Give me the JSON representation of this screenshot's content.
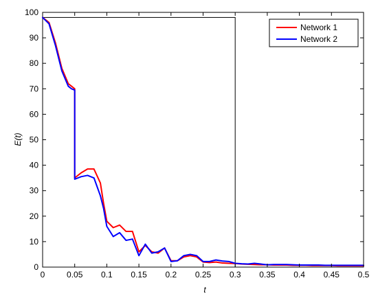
{
  "chart_data": {
    "type": "line",
    "title": "",
    "xlabel": "t",
    "ylabel": "E(t)",
    "xlim": [
      0,
      0.5
    ],
    "ylim": [
      0,
      100
    ],
    "xticks": [
      "0",
      "0.05",
      "0.1",
      "0.15",
      "0.2",
      "0.25",
      "0.3",
      "0.35",
      "0.4",
      "0.45",
      "0.5"
    ],
    "yticks": [
      "0",
      "10",
      "20",
      "30",
      "40",
      "50",
      "60",
      "70",
      "80",
      "90",
      "100"
    ],
    "grid": false,
    "legend_position": "top-right",
    "annotations": {
      "box_corner": [
        0.3,
        98
      ]
    },
    "series": [
      {
        "name": "Network 1",
        "color": "#ff0000",
        "x": [
          0,
          0.01,
          0.02,
          0.03,
          0.04,
          0.045,
          0.05,
          0.05,
          0.06,
          0.07,
          0.08,
          0.09,
          0.095,
          0.1,
          0.11,
          0.12,
          0.13,
          0.14,
          0.15,
          0.16,
          0.17,
          0.18,
          0.19,
          0.2,
          0.21,
          0.22,
          0.23,
          0.24,
          0.25,
          0.26,
          0.27,
          0.28,
          0.29,
          0.3,
          0.31,
          0.32,
          0.33,
          0.34,
          0.35,
          0.36,
          0.37,
          0.38,
          0.39,
          0.4,
          0.41,
          0.42,
          0.43,
          0.44,
          0.45,
          0.46,
          0.47,
          0.48,
          0.49,
          0.5
        ],
        "y": [
          98,
          96,
          88,
          78,
          72,
          71,
          70,
          35,
          37,
          38.5,
          38.5,
          33,
          25,
          18,
          15.5,
          16.5,
          14,
          14,
          6,
          8.5,
          6,
          5.5,
          7.5,
          2.5,
          2.5,
          4,
          4.5,
          4,
          2,
          1.8,
          2,
          1.6,
          1.5,
          1.4,
          1.2,
          1.1,
          1.0,
          0.9,
          0.9,
          0.8,
          0.8,
          0.8,
          0.7,
          0.7,
          0.7,
          0.6,
          0.6,
          0.6,
          0.6,
          0.5,
          0.5,
          0.5,
          0.5,
          0.5
        ]
      },
      {
        "name": "Network 2",
        "color": "#0000ff",
        "x": [
          0,
          0.01,
          0.02,
          0.03,
          0.04,
          0.045,
          0.05,
          0.05,
          0.06,
          0.07,
          0.08,
          0.09,
          0.095,
          0.1,
          0.11,
          0.12,
          0.13,
          0.14,
          0.15,
          0.16,
          0.17,
          0.18,
          0.19,
          0.2,
          0.21,
          0.22,
          0.23,
          0.24,
          0.25,
          0.26,
          0.27,
          0.28,
          0.29,
          0.3,
          0.31,
          0.32,
          0.33,
          0.34,
          0.35,
          0.36,
          0.37,
          0.38,
          0.39,
          0.4,
          0.41,
          0.42,
          0.43,
          0.44,
          0.45,
          0.46,
          0.47,
          0.48,
          0.49,
          0.5
        ],
        "y": [
          98,
          95.5,
          87,
          77,
          71,
          70,
          69.5,
          34.5,
          35.5,
          36,
          35,
          28,
          23,
          16,
          12,
          13.5,
          10.5,
          11,
          4.5,
          9,
          5.5,
          6,
          7.5,
          2.2,
          2.5,
          4.5,
          5,
          4.5,
          2.2,
          2.2,
          2.8,
          2.4,
          2.2,
          1.5,
          1.3,
          1.2,
          1.5,
          1.2,
          0.9,
          1.0,
          1.0,
          1.0,
          0.9,
          0.8,
          0.8,
          0.8,
          0.8,
          0.7,
          0.7,
          0.7,
          0.7,
          0.7,
          0.7,
          0.7
        ]
      }
    ]
  }
}
